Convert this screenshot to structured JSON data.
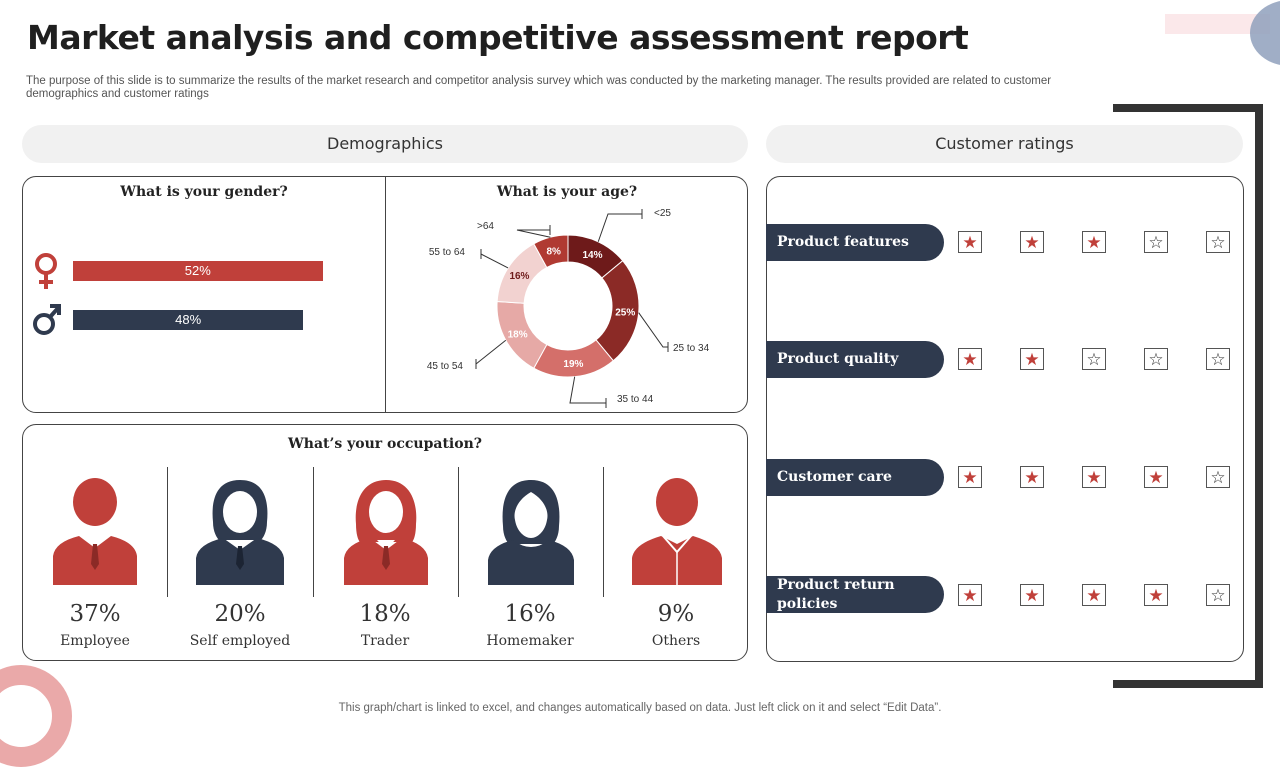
{
  "title": "Market analysis and competitive assessment report",
  "subtitle": "The purpose of this slide is to summarize the results of the market research and competitor analysis survey which was conducted by the marketing manager. The results provided are related to customer demographics and customer ratings",
  "demographics_header": "Demographics",
  "ratings_header": "Customer ratings",
  "gender": {
    "question": "What is your gender?",
    "female_label": "52%",
    "male_label": "48%"
  },
  "age": {
    "question": "What is your age?"
  },
  "occupation": {
    "question": "What’s your occupation?",
    "items": [
      {
        "pct": "37%",
        "label": "Employee"
      },
      {
        "pct": "20%",
        "label": "Self employed"
      },
      {
        "pct": "18%",
        "label": "Trader"
      },
      {
        "pct": "16%",
        "label": "Homemaker"
      },
      {
        "pct": "9%",
        "label": "Others"
      }
    ]
  },
  "ratings": [
    {
      "label": "Product features",
      "stars": 3
    },
    {
      "label": "Product quality",
      "stars": 2
    },
    {
      "label": "Customer care",
      "stars": 4
    },
    {
      "label": "Product return policies",
      "stars": 4
    }
  ],
  "footer": "This graph/chart is linked to excel, and changes automatically based on data. Just left click on it and select “Edit Data”.",
  "colors": {
    "accent_red": "#c0403a",
    "navy": "#2f3a4e",
    "age_slices": [
      "#6e1a1a",
      "#8b2a26",
      "#d46f6a",
      "#e6a9a6",
      "#f2d2d0",
      "#b03a32"
    ]
  },
  "chart_data": [
    {
      "type": "bar",
      "title": "What is your gender?",
      "categories": [
        "Female",
        "Male"
      ],
      "values": [
        52,
        48
      ],
      "unit": "%",
      "xlim": [
        0,
        100
      ]
    },
    {
      "type": "pie",
      "title": "What is your age?",
      "categories": [
        "<25",
        "25 to 34",
        "35 to 44",
        "45 to 54",
        "55 to 64",
        ">64"
      ],
      "values": [
        14,
        25,
        19,
        18,
        16,
        8
      ],
      "labels": [
        "14%",
        "25%",
        "19%",
        "18%",
        "16%",
        "8%"
      ],
      "unit": "%",
      "donut": true
    },
    {
      "type": "table",
      "title": "What’s your occupation?",
      "categories": [
        "Employee",
        "Self employed",
        "Trader",
        "Homemaker",
        "Others"
      ],
      "values": [
        37,
        20,
        18,
        16,
        9
      ],
      "unit": "%"
    },
    {
      "type": "table",
      "title": "Customer ratings",
      "categories": [
        "Product features",
        "Product quality",
        "Customer care",
        "Product return policies"
      ],
      "values": [
        3,
        2,
        4,
        4
      ],
      "max": 5
    }
  ]
}
